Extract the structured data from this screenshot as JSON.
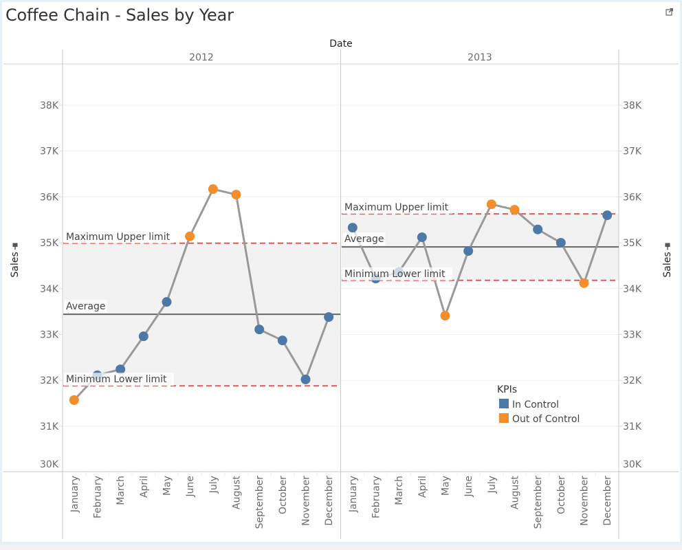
{
  "dashboard": {
    "title": "Coffee Chain - Sales by Year",
    "popout_icon": "external-link-icon"
  },
  "chart_data": {
    "type": "line",
    "title": "Coffee Chain - Sales by Year",
    "column_header": "Date",
    "xlabel": "Date",
    "ylabel": "Sales",
    "ylim": [
      30000,
      38700
    ],
    "y_ticks": [
      30000,
      31000,
      32000,
      33000,
      34000,
      35000,
      36000,
      37000,
      38000
    ],
    "y_tick_labels": [
      "30K",
      "31K",
      "32K",
      "33K",
      "34K",
      "35K",
      "36K",
      "37K",
      "38K"
    ],
    "categories": [
      "January",
      "February",
      "March",
      "April",
      "May",
      "June",
      "July",
      "August",
      "September",
      "October",
      "November",
      "December"
    ],
    "grid": true,
    "pin_icon": "pin-icon",
    "panes": [
      {
        "year": "2012",
        "values": [
          31570,
          32110,
          32240,
          32960,
          33710,
          35140,
          36170,
          36050,
          33110,
          32870,
          32020,
          33380
        ],
        "status": [
          "Out of Control",
          "In Control",
          "In Control",
          "In Control",
          "In Control",
          "Out of Control",
          "Out of Control",
          "Out of Control",
          "In Control",
          "In Control",
          "In Control",
          "In Control"
        ],
        "reference_lines": {
          "upper": {
            "label": "Maximum Upper limit",
            "value": 34990
          },
          "average": {
            "label": "Average",
            "value": 33440
          },
          "lower": {
            "label": "Minimum Lower limit",
            "value": 31880
          }
        }
      },
      {
        "year": "2013",
        "values": [
          35330,
          34220,
          34360,
          35120,
          33410,
          34820,
          35840,
          35720,
          35290,
          35000,
          34120,
          35600
        ],
        "status": [
          "In Control",
          "In Control",
          "In Control",
          "In Control",
          "Out of Control",
          "In Control",
          "Out of Control",
          "Out of Control",
          "In Control",
          "In Control",
          "Out of Control",
          "In Control"
        ],
        "reference_lines": {
          "upper": {
            "label": "Maximum Upper limit",
            "value": 35630
          },
          "average": {
            "label": "Average",
            "value": 34910
          },
          "lower": {
            "label": "Minimum Lower limit",
            "value": 34180
          }
        }
      }
    ],
    "legend": {
      "title": "KPIs",
      "placement": "bottom-right",
      "items": [
        {
          "label": "In Control",
          "color": "#4e79a7"
        },
        {
          "label": "Out of Control",
          "color": "#f28e2b"
        }
      ]
    },
    "colors": {
      "line": "#999999",
      "reference_limit": "#e15759",
      "average": "#666666",
      "band": "#f2f2f2"
    }
  }
}
